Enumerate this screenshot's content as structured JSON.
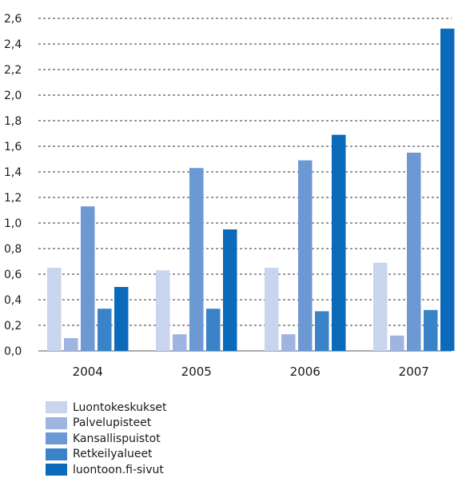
{
  "chart_data": {
    "type": "bar",
    "categories": [
      "2004",
      "2005",
      "2006",
      "2007"
    ],
    "series": [
      {
        "name": "Luontokeskukset",
        "color": "#c9d5ee",
        "values": [
          0.65,
          0.63,
          0.65,
          0.69
        ]
      },
      {
        "name": "Palvelupisteet",
        "color": "#9db5e0",
        "values": [
          0.1,
          0.13,
          0.13,
          0.12
        ]
      },
      {
        "name": "Kansallispuistot",
        "color": "#6c98d4",
        "values": [
          1.13,
          1.43,
          1.49,
          1.55
        ]
      },
      {
        "name": "Retkeilyalueet",
        "color": "#3b83c8",
        "values": [
          0.33,
          0.33,
          0.31,
          0.32
        ]
      },
      {
        "name": "luontoon.fi-sivut",
        "color": "#0b6bba",
        "values": [
          0.5,
          0.95,
          1.69,
          2.52
        ]
      }
    ],
    "yticks": [
      "0,0",
      "0,2",
      "0,4",
      "0,6",
      "0,8",
      "1,0",
      "1,2",
      "1,4",
      "1,6",
      "1,8",
      "2,0",
      "2,2",
      "2,4",
      "2,6"
    ],
    "ylim": [
      0,
      2.6
    ],
    "title": "",
    "xlabel": "",
    "ylabel": "",
    "grid": true,
    "legend_position": "bottom-left"
  }
}
